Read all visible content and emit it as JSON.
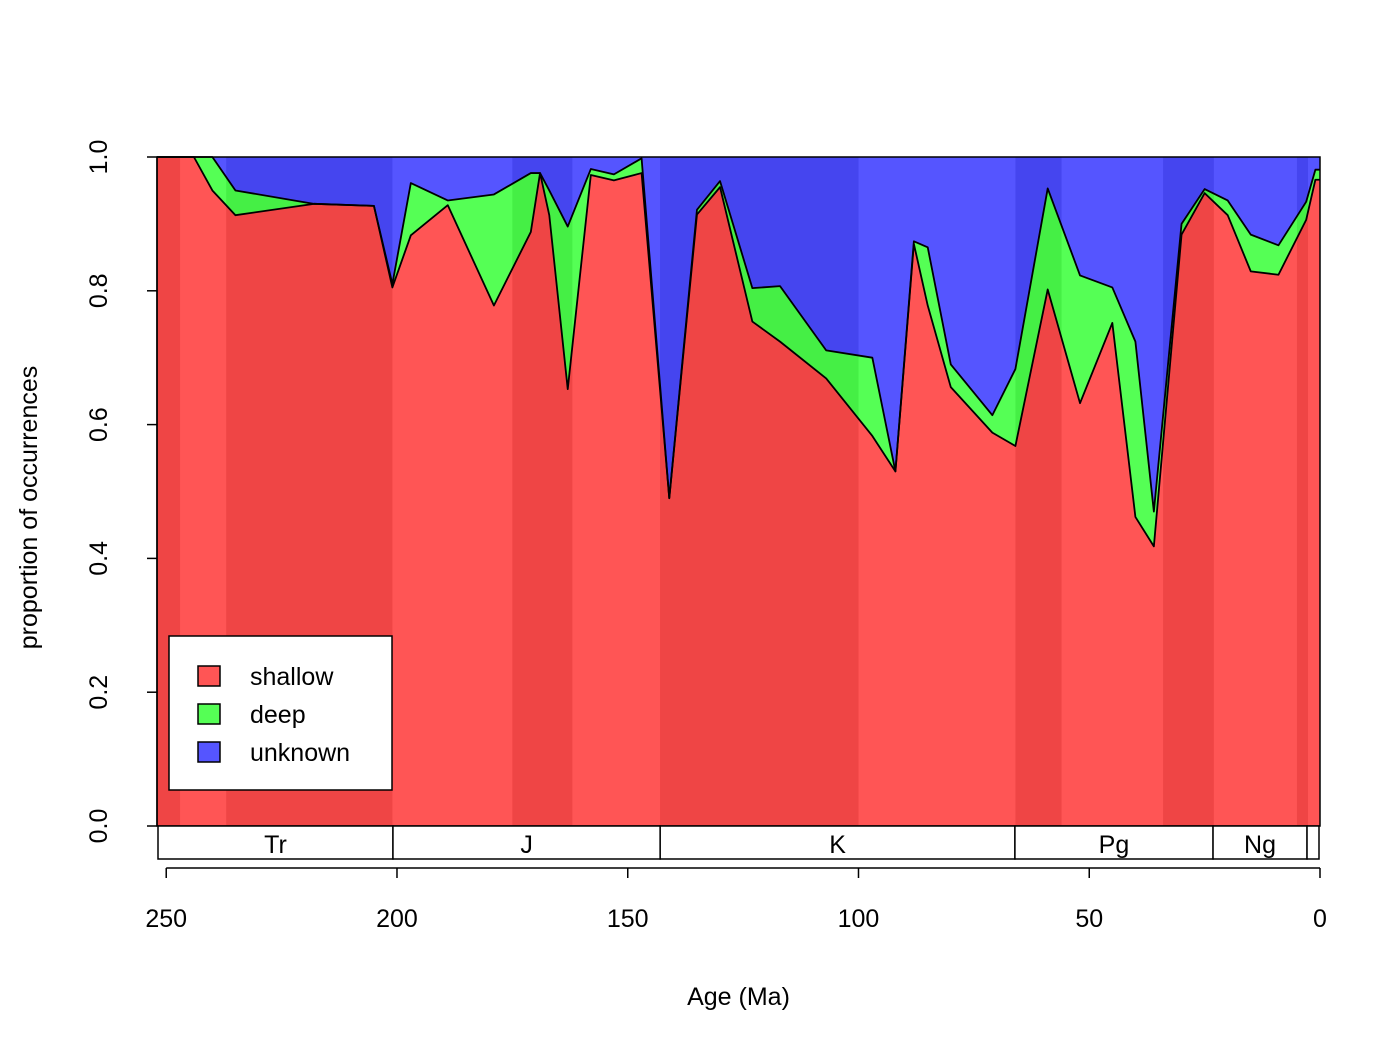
{
  "chart_data": {
    "type": "area",
    "stacked": true,
    "title": "",
    "xlabel": "Age (Ma)",
    "ylabel": "proportion of occurrences",
    "xlim": [
      252,
      0
    ],
    "ylim": [
      0,
      1
    ],
    "x_ticks": [
      250,
      200,
      150,
      100,
      50,
      0
    ],
    "x_tick_labels": [
      "250",
      "200",
      "150",
      "100",
      "50",
      "0"
    ],
    "y_ticks": [
      0,
      0.2,
      0.4,
      0.6,
      0.8,
      1
    ],
    "y_tick_labels": [
      "0.0",
      "0.2",
      "0.4",
      "0.6",
      "0.8",
      "1.0"
    ],
    "legend_position": "bottom-left",
    "x": [
      252,
      244,
      240,
      235,
      218,
      205,
      201,
      197,
      189,
      179,
      171,
      169,
      167,
      163,
      158,
      153,
      147,
      141,
      135,
      130,
      123,
      117,
      107,
      97,
      92,
      88,
      85,
      80,
      71,
      66,
      59,
      52,
      45,
      40,
      36,
      30,
      25,
      20,
      15,
      9,
      3,
      1,
      0
    ],
    "series": [
      {
        "name": "shallow",
        "color": "#FF5555",
        "values": [
          1.0,
          1.0,
          0.95,
          0.913,
          0.93,
          0.927,
          0.805,
          0.883,
          0.928,
          0.778,
          0.888,
          0.976,
          0.913,
          0.653,
          0.973,
          0.965,
          0.976,
          0.49,
          0.914,
          0.955,
          0.754,
          0.724,
          0.669,
          0.583,
          0.53,
          0.87,
          0.778,
          0.656,
          0.588,
          0.568,
          0.802,
          0.632,
          0.752,
          0.462,
          0.418,
          0.884,
          0.946,
          0.913,
          0.829,
          0.824,
          0.906,
          0.966,
          0.966
        ]
      },
      {
        "name": "deep",
        "color": "#55FF55",
        "values": [
          0.0,
          0.0,
          0.05,
          0.037,
          0.0,
          0.0,
          0.005,
          0.078,
          0.007,
          0.166,
          0.088,
          0.0,
          0.037,
          0.243,
          0.009,
          0.009,
          0.022,
          0.0,
          0.007,
          0.009,
          0.05,
          0.083,
          0.042,
          0.117,
          0.0,
          0.004,
          0.087,
          0.034,
          0.026,
          0.115,
          0.151,
          0.191,
          0.053,
          0.262,
          0.052,
          0.016,
          0.006,
          0.022,
          0.055,
          0.044,
          0.027,
          0.015,
          0.015
        ]
      },
      {
        "name": "unknown",
        "color": "#5555FF",
        "values": [
          0.0,
          0.0,
          0.0,
          0.05,
          0.07,
          0.073,
          0.19,
          0.039,
          0.065,
          0.056,
          0.024,
          0.024,
          0.05,
          0.104,
          0.018,
          0.026,
          0.002,
          0.51,
          0.079,
          0.036,
          0.196,
          0.193,
          0.289,
          0.3,
          0.47,
          0.126,
          0.135,
          0.31,
          0.386,
          0.317,
          0.047,
          0.177,
          0.195,
          0.276,
          0.53,
          0.1,
          0.048,
          0.065,
          0.116,
          0.132,
          0.067,
          0.019,
          0.019
        ]
      }
    ],
    "background_bands": [
      {
        "start": 252,
        "end": 247,
        "shade": "dark"
      },
      {
        "start": 247,
        "end": 237,
        "shade": "light"
      },
      {
        "start": 237,
        "end": 201,
        "shade": "dark"
      },
      {
        "start": 201,
        "end": 175,
        "shade": "light"
      },
      {
        "start": 175,
        "end": 162,
        "shade": "dark"
      },
      {
        "start": 162,
        "end": 143,
        "shade": "light"
      },
      {
        "start": 143,
        "end": 100,
        "shade": "dark"
      },
      {
        "start": 100,
        "end": 66,
        "shade": "light"
      },
      {
        "start": 66,
        "end": 56,
        "shade": "dark"
      },
      {
        "start": 56,
        "end": 34,
        "shade": "light"
      },
      {
        "start": 34,
        "end": 23,
        "shade": "dark"
      },
      {
        "start": 23,
        "end": 5,
        "shade": "light"
      },
      {
        "start": 5,
        "end": 2.6,
        "shade": "dark"
      },
      {
        "start": 2.6,
        "end": 0,
        "shade": "light"
      }
    ],
    "band_colors": {
      "shallow": {
        "dark": "#EF4545",
        "light": "#FF5555"
      },
      "deep": {
        "dark": "#45EF45",
        "light": "#55FF55"
      },
      "unknown": {
        "dark": "#4545EF",
        "light": "#5555FF"
      }
    },
    "periods": [
      {
        "label": "Tr",
        "start": 252,
        "end": 201
      },
      {
        "label": "J",
        "start": 201,
        "end": 143
      },
      {
        "label": "K",
        "start": 143,
        "end": 66
      },
      {
        "label": "Pg",
        "start": 66,
        "end": 23
      },
      {
        "label": "Ng",
        "start": 23,
        "end": 2.6
      },
      {
        "label": "",
        "start": 2.6,
        "end": 0
      }
    ]
  }
}
